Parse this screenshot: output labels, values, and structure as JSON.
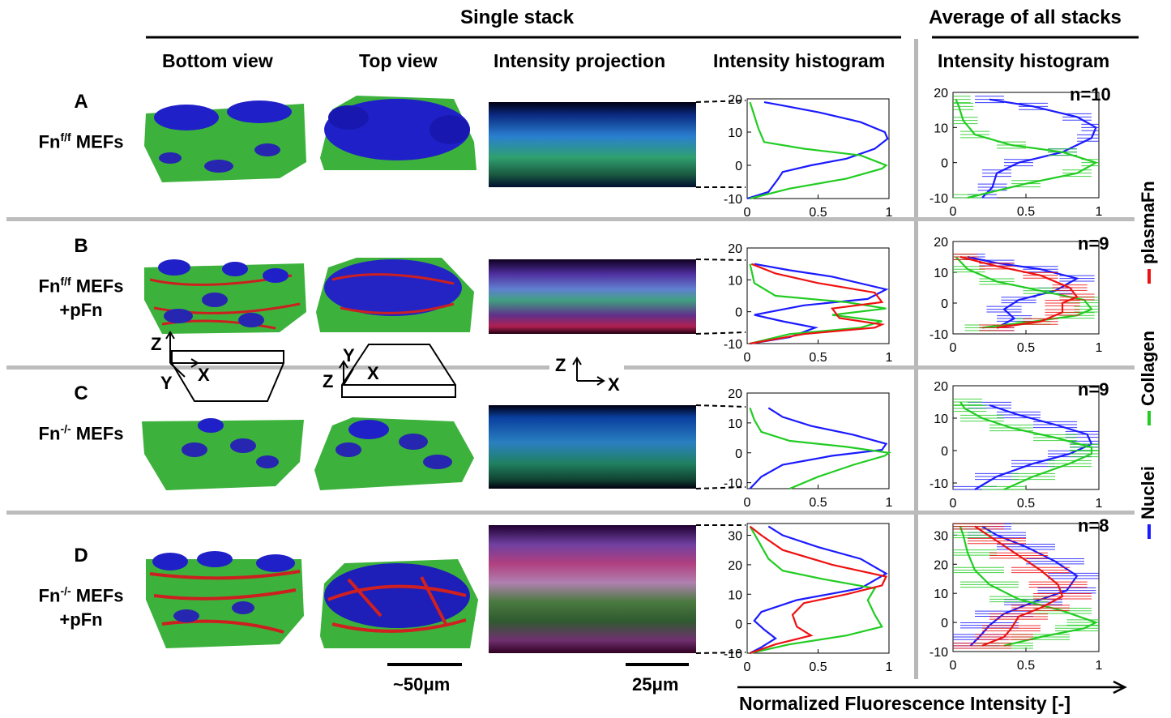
{
  "headers": {
    "single_stack": "Single stack",
    "average": "Average of all stacks",
    "bottom_view": "Bottom view",
    "top_view": "Top view",
    "intensity_projection": "Intensity projection",
    "intensity_histogram": "Intensity histogram",
    "intensity_histogram_avg": "Intensity histogram"
  },
  "rows": [
    {
      "letter": "A",
      "line1": "Fn",
      "sup": "f/f",
      "line1b": " MEFs",
      "line2": ""
    },
    {
      "letter": "B",
      "line1": "Fn",
      "sup": "f/f",
      "line1b": " MEFs",
      "line2": "+pFn"
    },
    {
      "letter": "C",
      "line1": "Fn",
      "sup": "-/-",
      "line1b": " MEFs",
      "line2": ""
    },
    {
      "letter": "D",
      "line1": "Fn",
      "sup": "-/-",
      "line1b": " MEFs",
      "line2": "+pFn"
    }
  ],
  "n_labels": [
    "n=10",
    "n=9",
    "n=9",
    "n=8"
  ],
  "legend": {
    "nuclei": "Nuclei",
    "collagen": "Collagen",
    "plasmafn": "plasmaFn"
  },
  "axes_labels": {
    "x_axis": "Normalized Fluorescence Intensity [-]",
    "z": "Z",
    "y": "Y",
    "x": "X"
  },
  "scale_bars": {
    "views": "~50μm",
    "projection": "25μm"
  },
  "colors": {
    "nuclei": "#1a1aff",
    "collagen": "#22cc22",
    "plasmafn": "#ee1111"
  },
  "chart_data": [
    {
      "type": "line",
      "panel": "A-single",
      "xlim": [
        0,
        1
      ],
      "ylim": [
        -10,
        20
      ],
      "yticks": [
        -10,
        0,
        10,
        20
      ],
      "xticks": [
        0,
        0.5,
        1
      ],
      "series": [
        {
          "name": "Nuclei",
          "points": [
            [
              0,
              -10
            ],
            [
              0.15,
              -8
            ],
            [
              0.22,
              -4
            ],
            [
              0.25,
              -2
            ],
            [
              0.45,
              0
            ],
            [
              0.7,
              2
            ],
            [
              0.9,
              5
            ],
            [
              0.99,
              8
            ],
            [
              0.97,
              10
            ],
            [
              0.8,
              13
            ],
            [
              0.5,
              16
            ],
            [
              0.25,
              18
            ],
            [
              0.12,
              19
            ]
          ]
        },
        {
          "name": "Collagen",
          "points": [
            [
              0.02,
              -10
            ],
            [
              0.3,
              -7
            ],
            [
              0.7,
              -4
            ],
            [
              0.95,
              -1
            ],
            [
              0.98,
              0
            ],
            [
              0.8,
              3
            ],
            [
              0.4,
              5
            ],
            [
              0.12,
              7
            ],
            [
              0.08,
              11
            ],
            [
              0.05,
              15
            ],
            [
              0.02,
              19
            ]
          ]
        }
      ]
    },
    {
      "type": "line",
      "panel": "B-single",
      "xlim": [
        0,
        1
      ],
      "ylim": [
        -10,
        20
      ],
      "yticks": [
        -10,
        0,
        10,
        20
      ],
      "xticks": [
        0,
        0.5,
        1
      ],
      "series": [
        {
          "name": "Nuclei",
          "points": [
            [
              0.02,
              -10
            ],
            [
              0.3,
              -8
            ],
            [
              0.48,
              -5
            ],
            [
              0.25,
              -3
            ],
            [
              0.05,
              -1
            ],
            [
              0.4,
              2
            ],
            [
              0.85,
              4
            ],
            [
              0.98,
              7
            ],
            [
              0.6,
              11
            ],
            [
              0.3,
              13
            ],
            [
              0.05,
              15
            ]
          ]
        },
        {
          "name": "Collagen",
          "points": [
            [
              0.02,
              -10
            ],
            [
              0.3,
              -7
            ],
            [
              0.8,
              -5
            ],
            [
              0.95,
              -3
            ],
            [
              0.6,
              -1
            ],
            [
              0.98,
              1
            ],
            [
              0.7,
              3
            ],
            [
              0.2,
              5
            ],
            [
              0.05,
              9
            ],
            [
              0.03,
              13
            ],
            [
              0.02,
              15
            ]
          ]
        },
        {
          "name": "plasmaFn",
          "points": [
            [
              0.02,
              -10
            ],
            [
              0.4,
              -7
            ],
            [
              0.9,
              -5
            ],
            [
              0.95,
              -4
            ],
            [
              0.65,
              -2
            ],
            [
              0.6,
              1
            ],
            [
              0.95,
              3
            ],
            [
              0.9,
              6
            ],
            [
              0.5,
              9
            ],
            [
              0.2,
              12
            ],
            [
              0.03,
              15
            ]
          ]
        }
      ]
    },
    {
      "type": "line",
      "panel": "C-single",
      "xlim": [
        0,
        1
      ],
      "ylim": [
        -12,
        20
      ],
      "yticks": [
        -10,
        0,
        10,
        20
      ],
      "xticks": [
        0,
        0.5,
        1
      ],
      "series": [
        {
          "name": "Nuclei",
          "points": [
            [
              0.02,
              -12
            ],
            [
              0.1,
              -8
            ],
            [
              0.25,
              -4
            ],
            [
              0.6,
              -1
            ],
            [
              0.95,
              1
            ],
            [
              0.98,
              3
            ],
            [
              0.75,
              6
            ],
            [
              0.45,
              9
            ],
            [
              0.25,
              12
            ],
            [
              0.15,
              15
            ]
          ]
        },
        {
          "name": "Collagen",
          "points": [
            [
              0.3,
              -12
            ],
            [
              0.5,
              -8
            ],
            [
              0.75,
              -4
            ],
            [
              0.97,
              -1
            ],
            [
              1.0,
              0
            ],
            [
              0.7,
              2
            ],
            [
              0.3,
              4
            ],
            [
              0.1,
              7
            ],
            [
              0.05,
              11
            ],
            [
              0.02,
              15
            ]
          ]
        }
      ]
    },
    {
      "type": "line",
      "panel": "D-single",
      "xlim": [
        0,
        1
      ],
      "ylim": [
        -10,
        34
      ],
      "yticks": [
        -10,
        0,
        10,
        20,
        30
      ],
      "xticks": [
        0,
        0.5,
        1
      ],
      "series": [
        {
          "name": "Nuclei",
          "points": [
            [
              0.02,
              -10
            ],
            [
              0.1,
              -8
            ],
            [
              0.2,
              -5
            ],
            [
              0.12,
              -2
            ],
            [
              0.05,
              1
            ],
            [
              0.1,
              4
            ],
            [
              0.35,
              8
            ],
            [
              0.8,
              12
            ],
            [
              0.98,
              17
            ],
            [
              0.8,
              22
            ],
            [
              0.5,
              26
            ],
            [
              0.25,
              30
            ],
            [
              0.15,
              33
            ]
          ]
        },
        {
          "name": "Collagen",
          "points": [
            [
              0.02,
              -10
            ],
            [
              0.3,
              -7
            ],
            [
              0.7,
              -4
            ],
            [
              0.95,
              -1
            ],
            [
              0.9,
              3
            ],
            [
              0.85,
              8
            ],
            [
              0.9,
              12
            ],
            [
              0.55,
              15
            ],
            [
              0.25,
              18
            ],
            [
              0.15,
              22
            ],
            [
              0.08,
              28
            ],
            [
              0.02,
              33
            ]
          ]
        },
        {
          "name": "plasmaFn",
          "points": [
            [
              0.02,
              -10
            ],
            [
              0.2,
              -7
            ],
            [
              0.45,
              -4
            ],
            [
              0.35,
              -1
            ],
            [
              0.32,
              3
            ],
            [
              0.4,
              7
            ],
            [
              0.7,
              10
            ],
            [
              0.95,
              13
            ],
            [
              0.98,
              16
            ],
            [
              0.6,
              20
            ],
            [
              0.25,
              25
            ],
            [
              0.1,
              30
            ],
            [
              0.02,
              33
            ]
          ]
        }
      ]
    },
    {
      "type": "line",
      "panel": "A-avg",
      "xlim": [
        0,
        1
      ],
      "ylim": [
        -10,
        20
      ],
      "yticks": [
        -10,
        0,
        10,
        20
      ],
      "xticks": [
        0,
        0.5,
        1
      ],
      "series": [
        {
          "name": "Nuclei",
          "err": 0.1,
          "points": [
            [
              0.2,
              -10
            ],
            [
              0.27,
              -7
            ],
            [
              0.3,
              -3
            ],
            [
              0.45,
              0
            ],
            [
              0.75,
              3
            ],
            [
              0.95,
              7
            ],
            [
              0.98,
              10
            ],
            [
              0.85,
              13
            ],
            [
              0.55,
              16
            ],
            [
              0.25,
              18
            ]
          ]
        },
        {
          "name": "Collagen",
          "err": 0.1,
          "points": [
            [
              0.1,
              -10
            ],
            [
              0.5,
              -6
            ],
            [
              0.85,
              -3
            ],
            [
              0.98,
              0
            ],
            [
              0.75,
              3
            ],
            [
              0.4,
              5
            ],
            [
              0.15,
              8
            ],
            [
              0.07,
              12
            ],
            [
              0.04,
              16
            ],
            [
              0.02,
              18
            ]
          ]
        }
      ]
    },
    {
      "type": "line",
      "panel": "B-avg",
      "xlim": [
        0,
        1
      ],
      "ylim": [
        -10,
        20
      ],
      "yticks": [
        -10,
        0,
        10,
        20
      ],
      "xticks": [
        0,
        0.5,
        1
      ],
      "series": [
        {
          "name": "Nuclei",
          "err": 0.12,
          "points": [
            [
              0.3,
              -8
            ],
            [
              0.42,
              -5
            ],
            [
              0.35,
              -2
            ],
            [
              0.45,
              1
            ],
            [
              0.7,
              4
            ],
            [
              0.85,
              8
            ],
            [
              0.6,
              11
            ],
            [
              0.3,
              13
            ],
            [
              0.1,
              15
            ]
          ]
        },
        {
          "name": "Collagen",
          "err": 0.12,
          "points": [
            [
              0.2,
              -8
            ],
            [
              0.55,
              -6
            ],
            [
              0.85,
              -4
            ],
            [
              0.95,
              -2
            ],
            [
              0.9,
              1
            ],
            [
              0.6,
              4
            ],
            [
              0.3,
              7
            ],
            [
              0.1,
              11
            ],
            [
              0.02,
              15
            ]
          ]
        },
        {
          "name": "plasmaFn",
          "err": 0.12,
          "points": [
            [
              0.3,
              -8
            ],
            [
              0.6,
              -6
            ],
            [
              0.75,
              -3
            ],
            [
              0.75,
              0
            ],
            [
              0.85,
              2
            ],
            [
              0.8,
              5
            ],
            [
              0.6,
              9
            ],
            [
              0.3,
              12
            ],
            [
              0.05,
              15
            ]
          ]
        }
      ]
    },
    {
      "type": "line",
      "panel": "C-avg",
      "xlim": [
        0,
        1
      ],
      "ylim": [
        -12,
        20
      ],
      "yticks": [
        -10,
        0,
        10,
        20
      ],
      "xticks": [
        0,
        0.5,
        1
      ],
      "series": [
        {
          "name": "Nuclei",
          "err": 0.15,
          "points": [
            [
              0.15,
              -12
            ],
            [
              0.3,
              -8
            ],
            [
              0.55,
              -4
            ],
            [
              0.8,
              -1
            ],
            [
              0.95,
              2
            ],
            [
              0.92,
              5
            ],
            [
              0.7,
              8
            ],
            [
              0.45,
              11
            ],
            [
              0.25,
              14
            ]
          ]
        },
        {
          "name": "Collagen",
          "err": 0.15,
          "points": [
            [
              0.35,
              -12
            ],
            [
              0.55,
              -8
            ],
            [
              0.8,
              -4
            ],
            [
              0.95,
              -1
            ],
            [
              0.95,
              1
            ],
            [
              0.7,
              4
            ],
            [
              0.4,
              7
            ],
            [
              0.2,
              10
            ],
            [
              0.08,
              13
            ],
            [
              0.05,
              15
            ]
          ]
        }
      ]
    },
    {
      "type": "line",
      "panel": "D-avg",
      "xlim": [
        0,
        1
      ],
      "ylim": [
        -10,
        34
      ],
      "yticks": [
        -10,
        0,
        10,
        20,
        30
      ],
      "xticks": [
        0,
        0.5,
        1
      ],
      "series": [
        {
          "name": "Nuclei",
          "err": 0.2,
          "points": [
            [
              0.12,
              -8
            ],
            [
              0.18,
              -5
            ],
            [
              0.25,
              -1
            ],
            [
              0.35,
              3
            ],
            [
              0.55,
              7
            ],
            [
              0.78,
              11
            ],
            [
              0.85,
              16
            ],
            [
              0.7,
              21
            ],
            [
              0.5,
              26
            ],
            [
              0.3,
              30
            ],
            [
              0.2,
              33
            ]
          ]
        },
        {
          "name": "Collagen",
          "err": 0.2,
          "points": [
            [
              0.35,
              -8
            ],
            [
              0.6,
              -5
            ],
            [
              0.9,
              -2
            ],
            [
              0.98,
              0
            ],
            [
              0.75,
              4
            ],
            [
              0.45,
              8
            ],
            [
              0.25,
              13
            ],
            [
              0.15,
              18
            ],
            [
              0.1,
              24
            ],
            [
              0.07,
              30
            ],
            [
              0.05,
              33
            ]
          ]
        },
        {
          "name": "plasmaFn",
          "err": 0.2,
          "points": [
            [
              0.2,
              -8
            ],
            [
              0.35,
              -5
            ],
            [
              0.4,
              -2
            ],
            [
              0.45,
              2
            ],
            [
              0.6,
              5
            ],
            [
              0.75,
              9
            ],
            [
              0.72,
              13
            ],
            [
              0.6,
              18
            ],
            [
              0.45,
              23
            ],
            [
              0.3,
              28
            ],
            [
              0.15,
              33
            ]
          ]
        }
      ]
    }
  ]
}
